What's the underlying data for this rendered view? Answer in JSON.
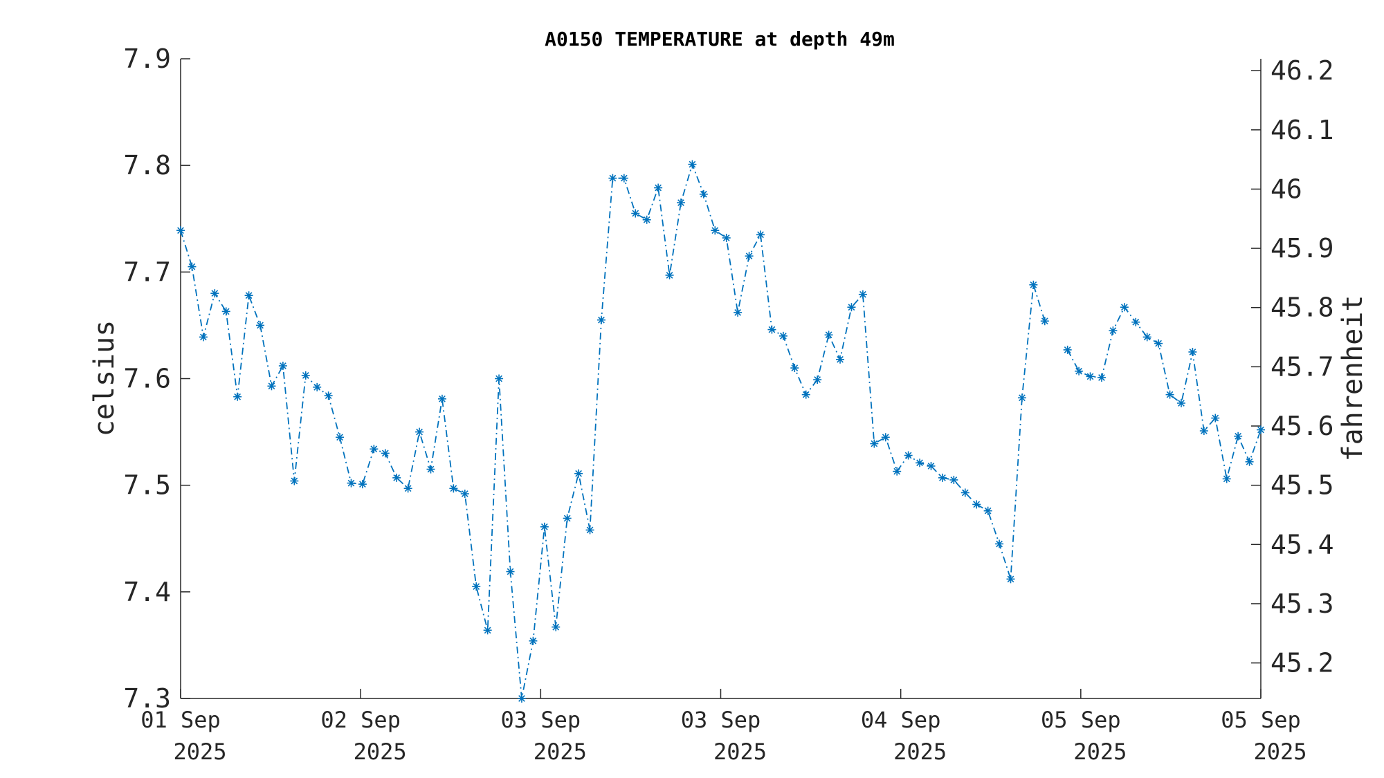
{
  "chart_data": {
    "type": "line",
    "title": "A0150 TEMPERATURE at depth 49m",
    "xlabel": "",
    "ylabel": "celsius",
    "y2label": "fahrenheit",
    "ylim": [
      7.3,
      7.9
    ],
    "y2lim": [
      45.14,
      46.22
    ],
    "yticks": [
      "7.3",
      "7.4",
      "7.5",
      "7.6",
      "7.7",
      "7.8",
      "7.9"
    ],
    "y2ticks": [
      "45.2",
      "45.3",
      "45.4",
      "45.5",
      "45.6",
      "45.7",
      "45.8",
      "45.9",
      "46",
      "46.1",
      "46.2"
    ],
    "xticks": [
      {
        "line1": "01 Sep",
        "line2": "2025"
      },
      {
        "line1": "02 Sep",
        "line2": "2025"
      },
      {
        "line1": "03 Sep",
        "line2": "2025"
      },
      {
        "line1": "03 Sep",
        "line2": "2025"
      },
      {
        "line1": "04 Sep",
        "line2": "2025"
      },
      {
        "line1": "05 Sep",
        "line2": "2025"
      },
      {
        "line1": "05 Sep",
        "line2": "2025"
      }
    ],
    "grid": false,
    "marker": "asterisk",
    "line_style": "dash-dot",
    "color": "#0072BD",
    "series": [
      {
        "values": [
          7.739,
          7.705,
          7.639,
          7.68,
          7.663,
          7.583,
          7.678,
          7.65,
          7.593,
          7.612,
          7.504,
          7.603,
          7.592,
          7.584,
          7.545,
          7.502,
          7.501,
          7.534,
          7.53,
          7.507,
          7.497,
          7.55,
          7.515,
          7.581,
          7.497,
          7.492,
          7.405,
          7.364,
          7.6,
          7.419,
          7.3,
          7.354,
          7.461,
          7.367,
          7.469,
          7.511,
          7.458,
          7.655,
          7.788,
          7.788,
          7.755,
          7.749,
          7.779,
          7.697,
          7.765,
          7.801,
          7.773,
          7.739,
          7.732,
          7.662,
          7.715,
          7.735,
          7.646,
          7.64,
          7.61,
          7.585,
          7.599,
          7.641,
          7.618,
          7.667,
          7.679,
          7.539,
          7.545,
          7.513,
          7.528,
          7.521,
          7.518,
          7.507,
          7.505,
          7.493,
          7.482,
          7.476,
          7.445,
          7.412,
          7.582,
          7.688,
          7.654,
          null,
          7.627,
          7.607,
          7.602,
          7.601,
          7.645,
          7.667,
          7.653,
          7.639,
          7.633,
          7.585,
          7.577,
          7.625,
          7.551,
          7.563,
          7.506,
          7.546,
          7.522,
          7.552
        ]
      }
    ]
  }
}
